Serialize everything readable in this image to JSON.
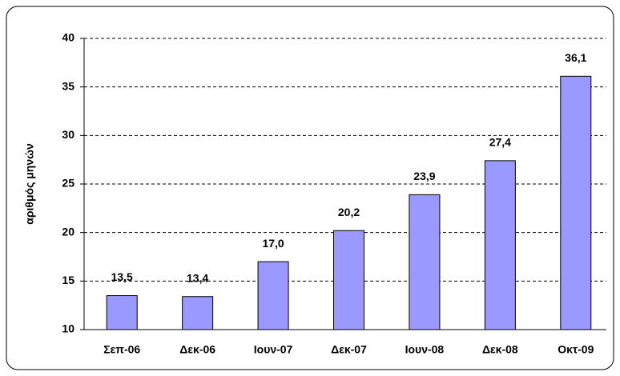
{
  "chart_data": {
    "type": "bar",
    "y_label": "αριθμός μηνών",
    "categories": [
      "Σεπ-06",
      "Δεκ-06",
      "Ιουν-07",
      "Δεκ-07",
      "Ιουν-08",
      "Δεκ-08",
      "Οκτ-09"
    ],
    "values": [
      13.5,
      13.4,
      17.0,
      20.2,
      23.9,
      27.4,
      36.1
    ],
    "value_labels": [
      "13,5",
      "13,4",
      "17,0",
      "20,2",
      "23,9",
      "27,4",
      "36,1"
    ],
    "color": "#9999ff",
    "ylim": [
      10,
      40
    ],
    "yticks": [
      10,
      15,
      20,
      25,
      30,
      35,
      40
    ],
    "grid": true
  }
}
